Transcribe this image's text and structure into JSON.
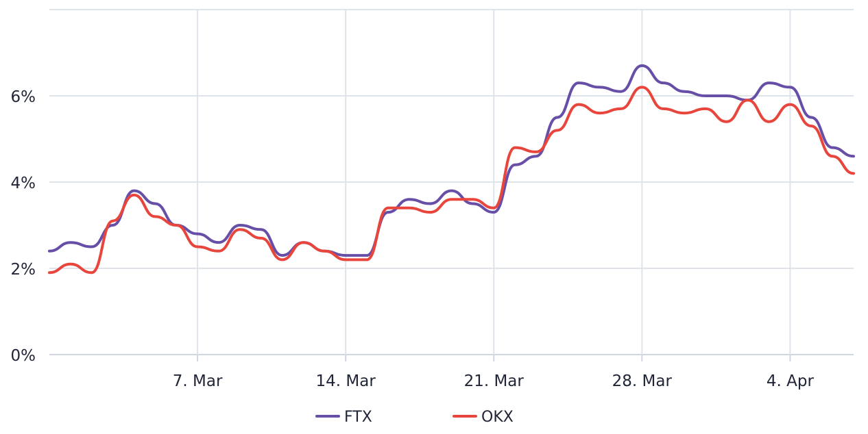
{
  "chart_data": {
    "type": "line",
    "title": "",
    "xlabel": "",
    "ylabel": "",
    "x_tick_labels": [
      "7. Mar",
      "14. Mar",
      "21. Mar",
      "28. Mar",
      "4. Apr"
    ],
    "y_tick_labels": [
      "0%",
      "2%",
      "4%",
      "6%"
    ],
    "ylim": [
      0,
      8
    ],
    "x_range": [
      "2022-02-28",
      "2022-04-07"
    ],
    "grid": true,
    "legend_position": "bottom",
    "x": [
      "2022-02-28",
      "2022-03-01",
      "2022-03-02",
      "2022-03-03",
      "2022-03-04",
      "2022-03-05",
      "2022-03-06",
      "2022-03-07",
      "2022-03-08",
      "2022-03-09",
      "2022-03-10",
      "2022-03-11",
      "2022-03-12",
      "2022-03-13",
      "2022-03-14",
      "2022-03-15",
      "2022-03-16",
      "2022-03-17",
      "2022-03-18",
      "2022-03-19",
      "2022-03-20",
      "2022-03-21",
      "2022-03-22",
      "2022-03-23",
      "2022-03-24",
      "2022-03-25",
      "2022-03-26",
      "2022-03-27",
      "2022-03-28",
      "2022-03-29",
      "2022-03-30",
      "2022-03-31",
      "2022-04-01",
      "2022-04-02",
      "2022-04-03",
      "2022-04-04",
      "2022-04-05",
      "2022-04-06",
      "2022-04-07"
    ],
    "series": [
      {
        "name": "FTX",
        "color": "#674ea7",
        "values": [
          2.4,
          2.6,
          2.5,
          3.0,
          3.8,
          3.5,
          3.0,
          2.8,
          2.6,
          3.0,
          2.9,
          2.3,
          2.6,
          2.4,
          2.3,
          2.3,
          3.3,
          3.6,
          3.5,
          3.8,
          3.5,
          3.3,
          4.4,
          4.6,
          5.5,
          6.3,
          6.2,
          6.1,
          6.7,
          6.3,
          6.1,
          6.0,
          6.0,
          5.9,
          6.3,
          6.2,
          5.5,
          4.8,
          4.6
        ]
      },
      {
        "name": "OKX",
        "color": "#e8463c",
        "values": [
          1.9,
          2.1,
          1.9,
          3.1,
          3.7,
          3.2,
          3.0,
          2.5,
          2.4,
          2.9,
          2.7,
          2.2,
          2.6,
          2.4,
          2.2,
          2.2,
          3.4,
          3.4,
          3.3,
          3.6,
          3.6,
          3.4,
          4.8,
          4.7,
          5.2,
          5.8,
          5.6,
          5.7,
          6.2,
          5.7,
          5.6,
          5.7,
          5.4,
          5.9,
          5.4,
          5.8,
          5.3,
          4.6,
          4.2
        ]
      }
    ]
  }
}
